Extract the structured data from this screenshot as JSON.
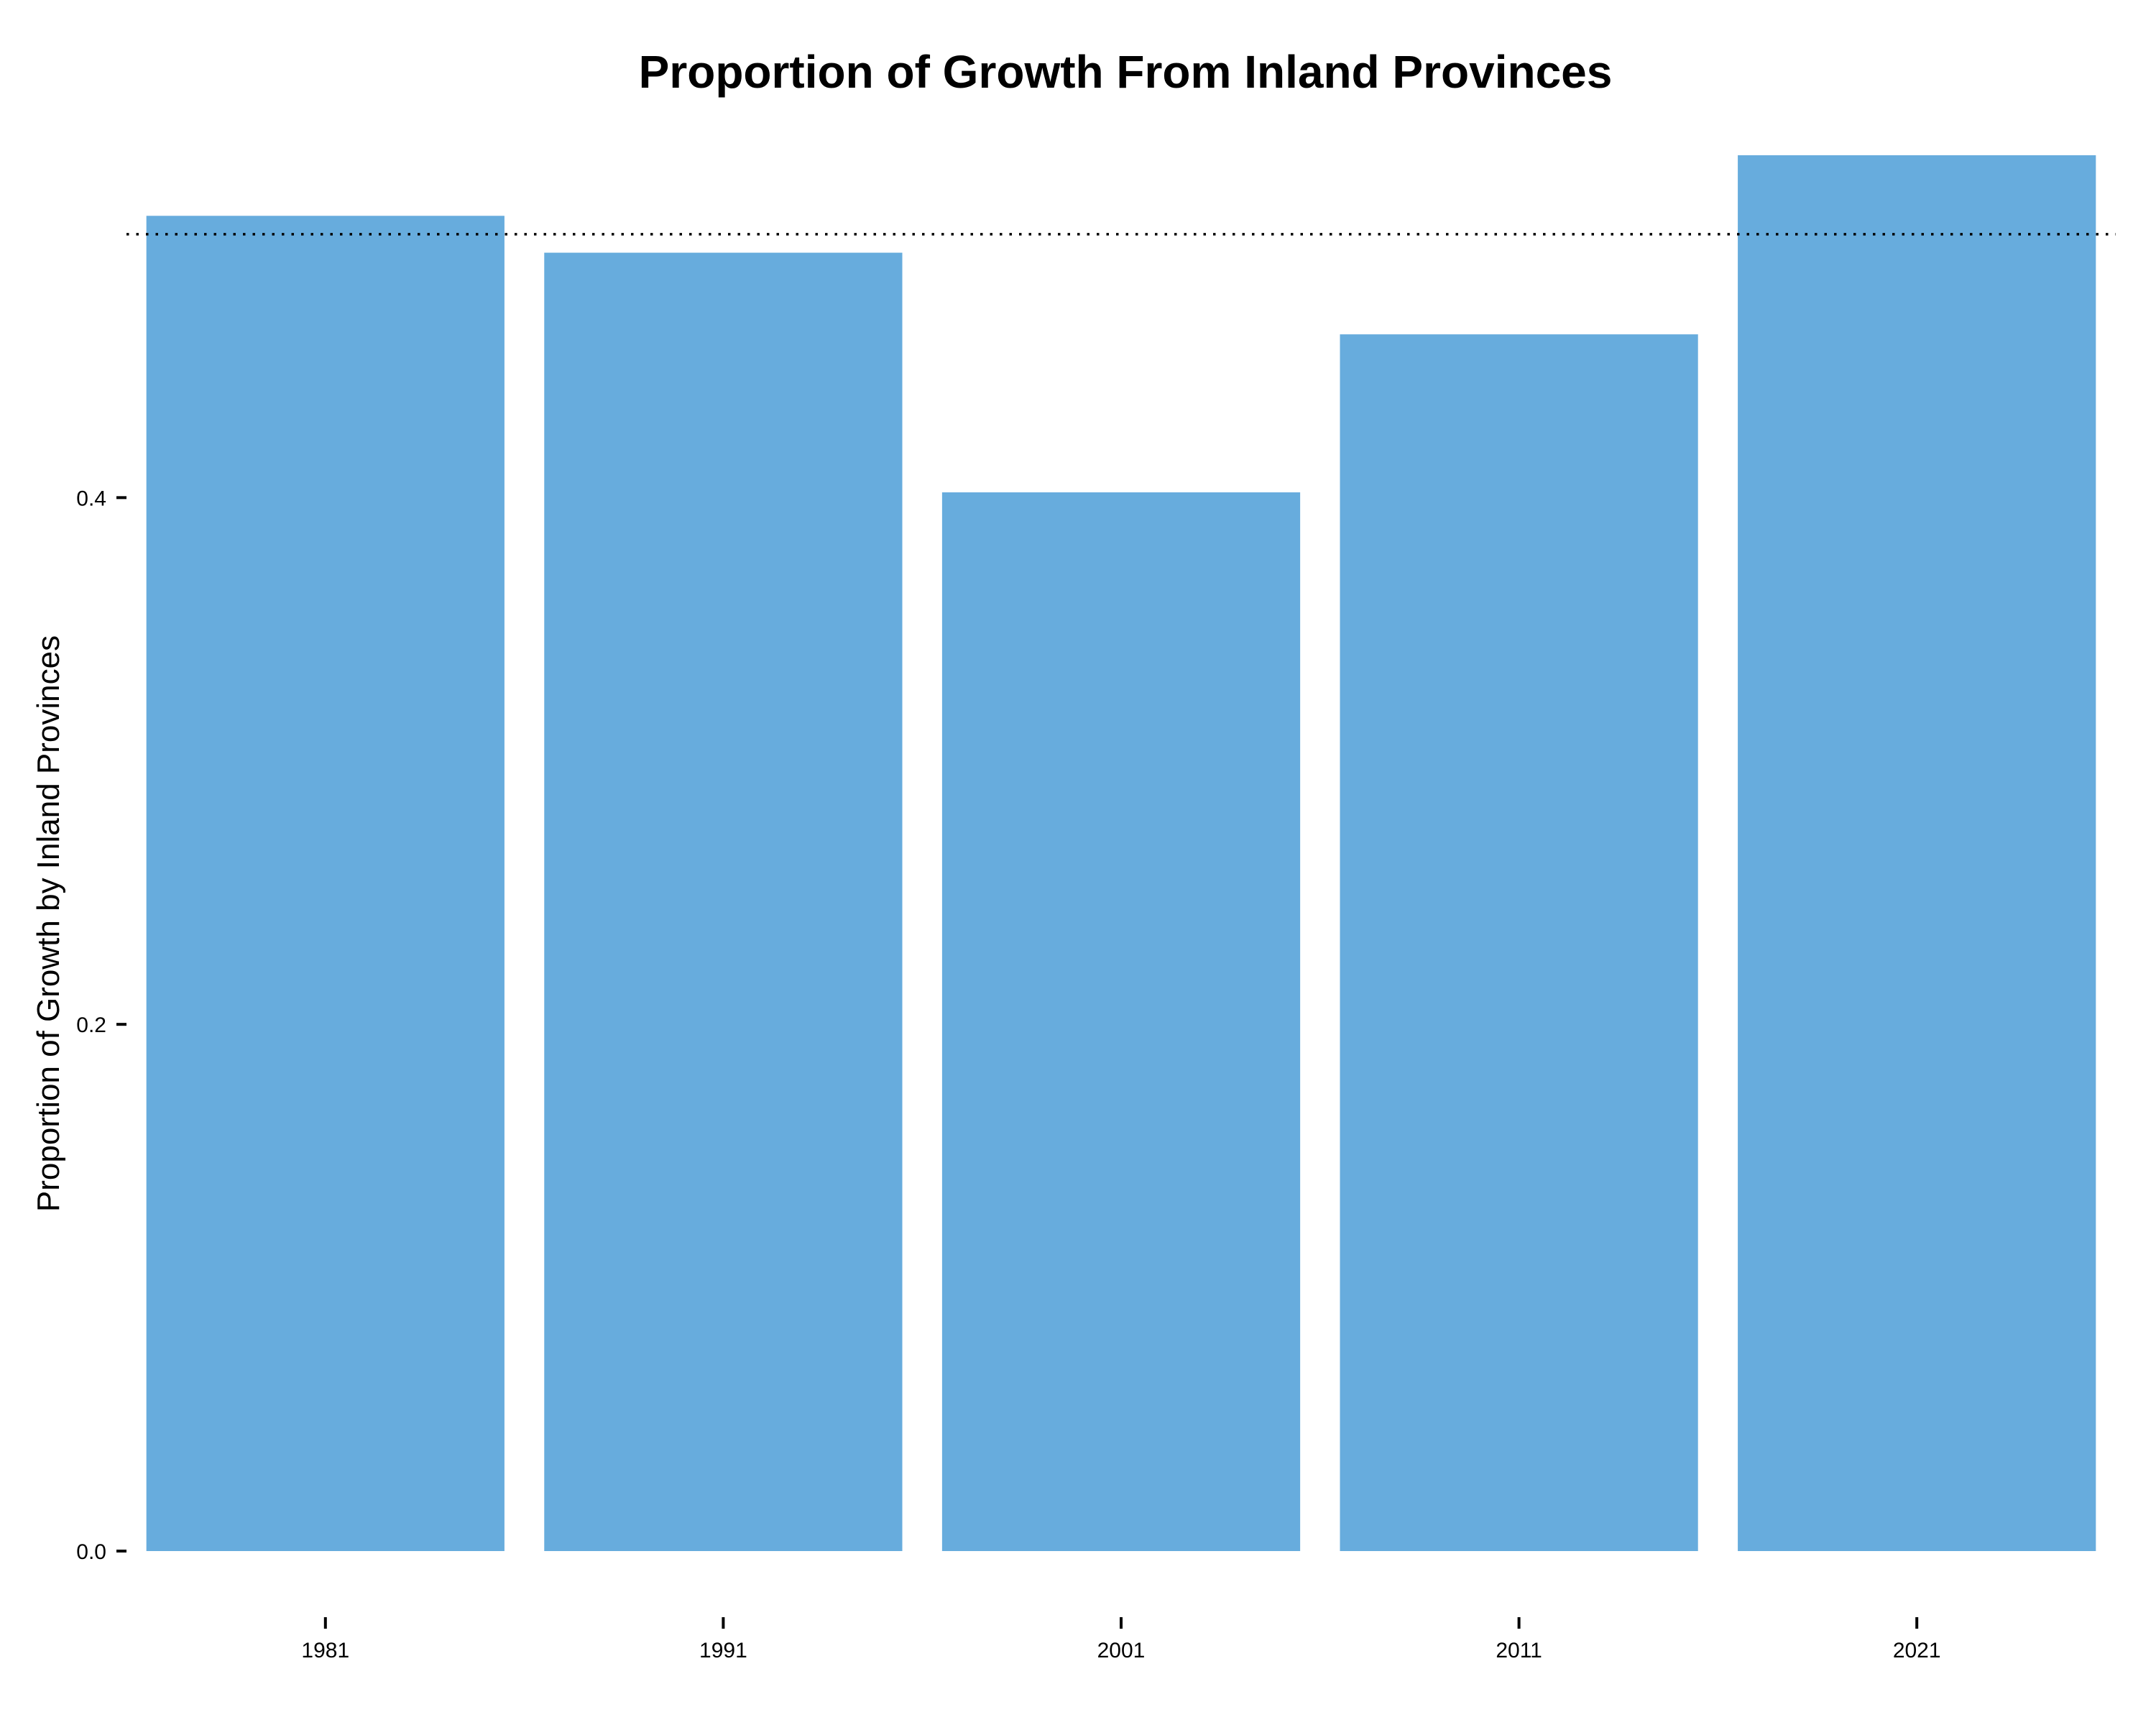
{
  "chart_data": {
    "type": "bar",
    "title": "Proportion of Growth From Inland Provinces",
    "xlabel": "",
    "ylabel": "Proportion of Growth by Inland Provinces",
    "categories": [
      "1981",
      "1991",
      "2001",
      "2011",
      "2021"
    ],
    "values": [
      0.507,
      0.493,
      0.402,
      0.462,
      0.53
    ],
    "ylim": [
      0,
      0.53
    ],
    "yticks": [
      "0.0",
      "0.2",
      "0.4"
    ],
    "ytick_values": [
      0.0,
      0.2,
      0.4
    ],
    "reference_line": {
      "value": 0.5,
      "style": "dotted"
    },
    "bar_color": "#67acdd",
    "grid": false,
    "legend": "none"
  }
}
